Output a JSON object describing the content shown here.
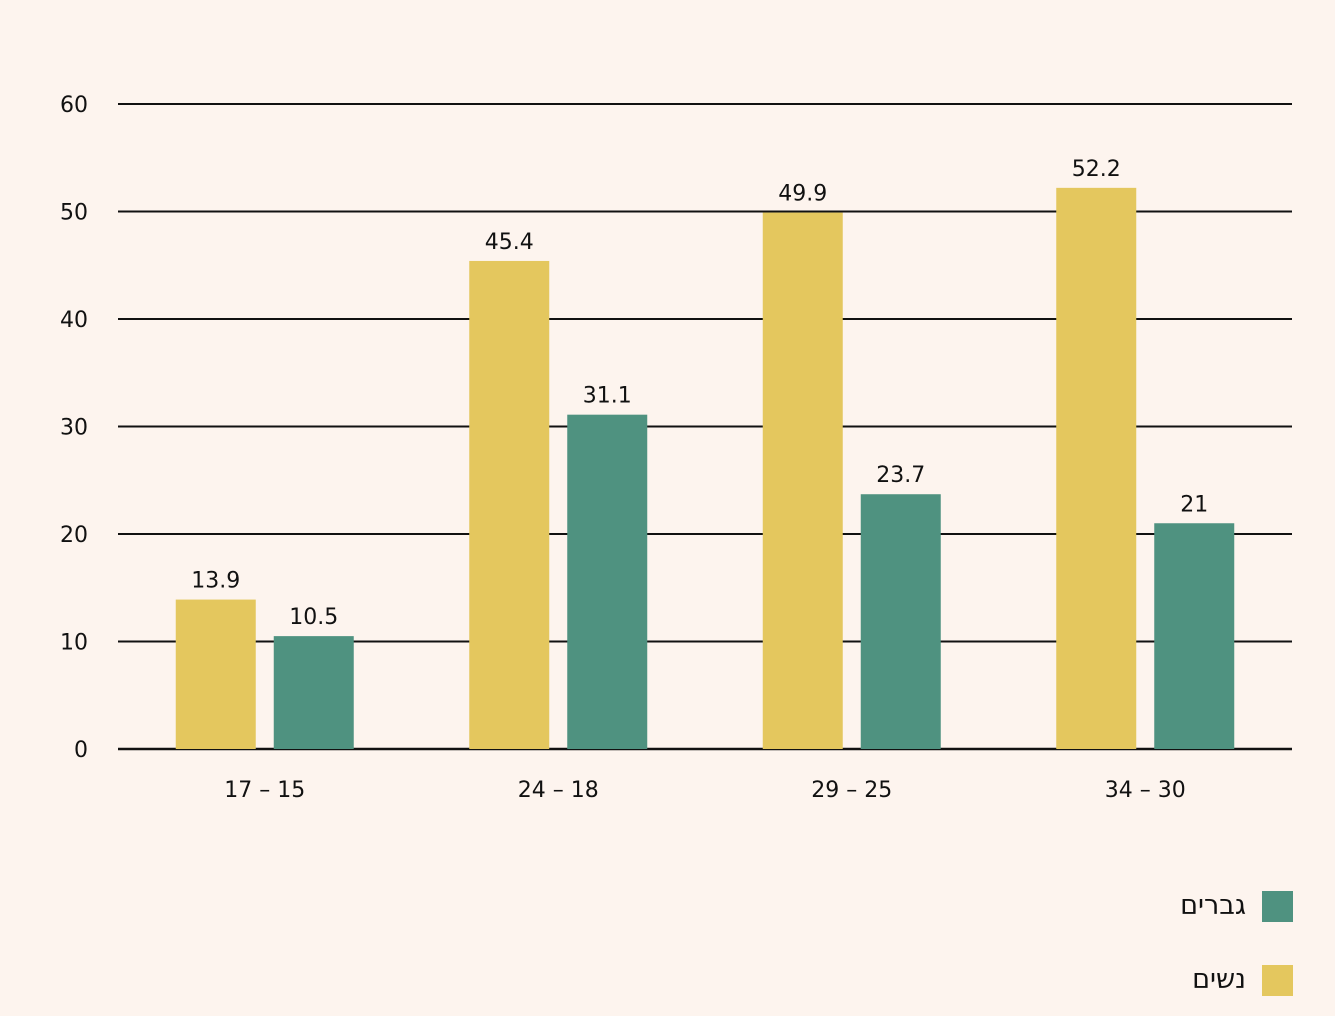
{
  "chart_data": {
    "type": "bar",
    "categories": [
      "17 – 15",
      "24 – 18",
      "29 – 25",
      "34 – 30"
    ],
    "series": [
      {
        "name": "נשים",
        "values": [
          13.9,
          45.4,
          49.9,
          52.2
        ],
        "color": "#e4c75e"
      },
      {
        "name": "גברים",
        "values": [
          10.5,
          31.1,
          23.7,
          21
        ],
        "color": "#4f9280"
      }
    ],
    "value_labels": [
      [
        "13.9",
        "45.4",
        "49.9",
        "52.2"
      ],
      [
        "10.5",
        "31.1",
        "23.7",
        "21"
      ]
    ],
    "ylim": [
      0,
      60
    ],
    "yticks": [
      0,
      10,
      20,
      30,
      40,
      50,
      60
    ],
    "grid": true,
    "legend_position": "bottom-right",
    "background": "#fdf4ee",
    "gridline_color": "#111111"
  }
}
